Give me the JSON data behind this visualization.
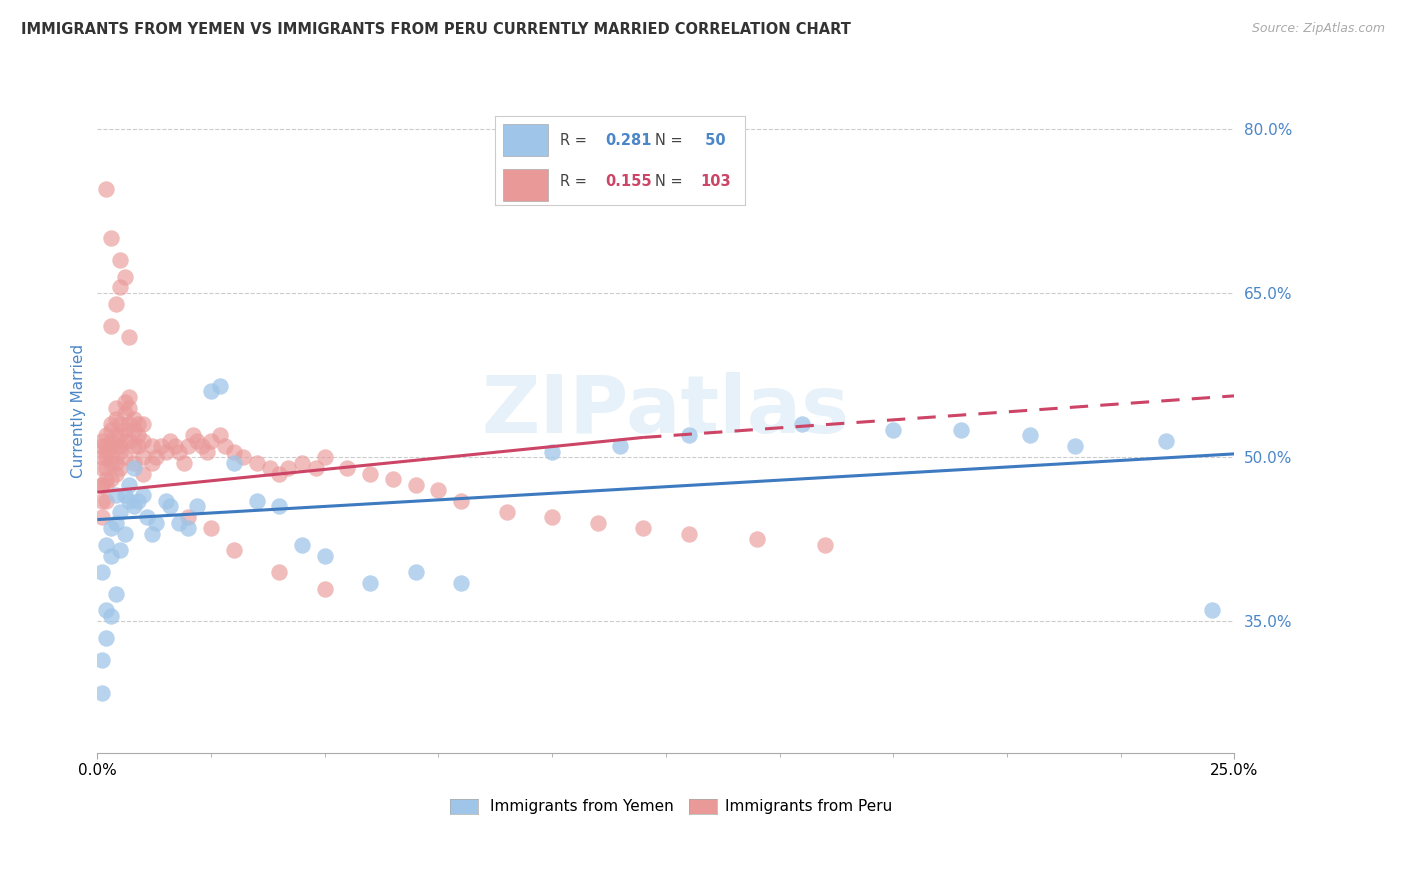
{
  "title": "IMMIGRANTS FROM YEMEN VS IMMIGRANTS FROM PERU CURRENTLY MARRIED CORRELATION CHART",
  "source": "Source: ZipAtlas.com",
  "ylabel": "Currently Married",
  "color_yemen": "#9fc5e8",
  "color_peru": "#ea9999",
  "color_ylabel": "#4a86c8",
  "color_yticks": "#4a86c8",
  "color_title": "#333333",
  "watermark_text": "ZIPatlas",
  "xlim": [
    0.0,
    0.25
  ],
  "ylim": [
    0.23,
    0.855
  ],
  "yticks": [
    0.35,
    0.5,
    0.65,
    0.8
  ],
  "ytick_labels": [
    "35.0%",
    "50.0%",
    "65.0%",
    "80.0%"
  ],
  "trend_blue_x0": 0.0,
  "trend_blue_y0": 0.443,
  "trend_blue_x1": 0.25,
  "trend_blue_y1": 0.503,
  "trend_pink_solid_x0": 0.0,
  "trend_pink_solid_y0": 0.468,
  "trend_pink_solid_x1": 0.12,
  "trend_pink_solid_y1": 0.518,
  "trend_pink_dash_x0": 0.12,
  "trend_pink_dash_y0": 0.518,
  "trend_pink_dash_x1": 0.25,
  "trend_pink_dash_y1": 0.556,
  "yemen_x": [
    0.001,
    0.001,
    0.001,
    0.002,
    0.002,
    0.002,
    0.003,
    0.003,
    0.003,
    0.004,
    0.004,
    0.004,
    0.005,
    0.005,
    0.006,
    0.006,
    0.007,
    0.007,
    0.008,
    0.008,
    0.009,
    0.01,
    0.011,
    0.012,
    0.013,
    0.015,
    0.016,
    0.018,
    0.02,
    0.022,
    0.025,
    0.027,
    0.03,
    0.035,
    0.04,
    0.045,
    0.05,
    0.06,
    0.07,
    0.08,
    0.1,
    0.115,
    0.13,
    0.155,
    0.175,
    0.19,
    0.205,
    0.215,
    0.235,
    0.245
  ],
  "yemen_y": [
    0.285,
    0.315,
    0.395,
    0.335,
    0.36,
    0.42,
    0.355,
    0.41,
    0.435,
    0.375,
    0.44,
    0.465,
    0.415,
    0.45,
    0.43,
    0.465,
    0.46,
    0.475,
    0.455,
    0.49,
    0.46,
    0.465,
    0.445,
    0.43,
    0.44,
    0.46,
    0.455,
    0.44,
    0.435,
    0.455,
    0.56,
    0.565,
    0.495,
    0.46,
    0.455,
    0.42,
    0.41,
    0.385,
    0.395,
    0.385,
    0.505,
    0.51,
    0.52,
    0.53,
    0.525,
    0.525,
    0.52,
    0.51,
    0.515,
    0.36
  ],
  "peru_x": [
    0.001,
    0.001,
    0.001,
    0.001,
    0.001,
    0.001,
    0.001,
    0.001,
    0.002,
    0.002,
    0.002,
    0.002,
    0.002,
    0.002,
    0.002,
    0.002,
    0.003,
    0.003,
    0.003,
    0.003,
    0.003,
    0.003,
    0.003,
    0.004,
    0.004,
    0.004,
    0.004,
    0.004,
    0.004,
    0.005,
    0.005,
    0.005,
    0.005,
    0.005,
    0.006,
    0.006,
    0.006,
    0.006,
    0.006,
    0.007,
    0.007,
    0.007,
    0.007,
    0.008,
    0.008,
    0.008,
    0.008,
    0.009,
    0.009,
    0.009,
    0.01,
    0.01,
    0.01,
    0.01,
    0.012,
    0.012,
    0.013,
    0.014,
    0.015,
    0.016,
    0.017,
    0.018,
    0.019,
    0.02,
    0.021,
    0.022,
    0.023,
    0.024,
    0.025,
    0.027,
    0.028,
    0.03,
    0.032,
    0.035,
    0.038,
    0.04,
    0.042,
    0.045,
    0.048,
    0.05,
    0.055,
    0.06,
    0.065,
    0.07,
    0.075,
    0.08,
    0.09,
    0.1,
    0.11,
    0.12,
    0.13,
    0.145,
    0.16,
    0.003,
    0.004,
    0.005,
    0.006,
    0.007,
    0.02,
    0.025,
    0.03,
    0.04,
    0.05,
    0.002,
    0.003,
    0.005
  ],
  "peru_y": [
    0.475,
    0.49,
    0.5,
    0.51,
    0.515,
    0.475,
    0.46,
    0.445,
    0.48,
    0.49,
    0.5,
    0.51,
    0.52,
    0.505,
    0.475,
    0.46,
    0.48,
    0.495,
    0.51,
    0.525,
    0.53,
    0.515,
    0.5,
    0.485,
    0.495,
    0.51,
    0.52,
    0.535,
    0.545,
    0.49,
    0.505,
    0.52,
    0.53,
    0.51,
    0.5,
    0.515,
    0.525,
    0.54,
    0.55,
    0.515,
    0.53,
    0.545,
    0.555,
    0.525,
    0.535,
    0.51,
    0.495,
    0.52,
    0.53,
    0.51,
    0.53,
    0.515,
    0.5,
    0.485,
    0.51,
    0.495,
    0.5,
    0.51,
    0.505,
    0.515,
    0.51,
    0.505,
    0.495,
    0.51,
    0.52,
    0.515,
    0.51,
    0.505,
    0.515,
    0.52,
    0.51,
    0.505,
    0.5,
    0.495,
    0.49,
    0.485,
    0.49,
    0.495,
    0.49,
    0.5,
    0.49,
    0.485,
    0.48,
    0.475,
    0.47,
    0.46,
    0.45,
    0.445,
    0.44,
    0.435,
    0.43,
    0.425,
    0.42,
    0.62,
    0.64,
    0.655,
    0.665,
    0.61,
    0.445,
    0.435,
    0.415,
    0.395,
    0.38,
    0.745,
    0.7,
    0.68
  ]
}
